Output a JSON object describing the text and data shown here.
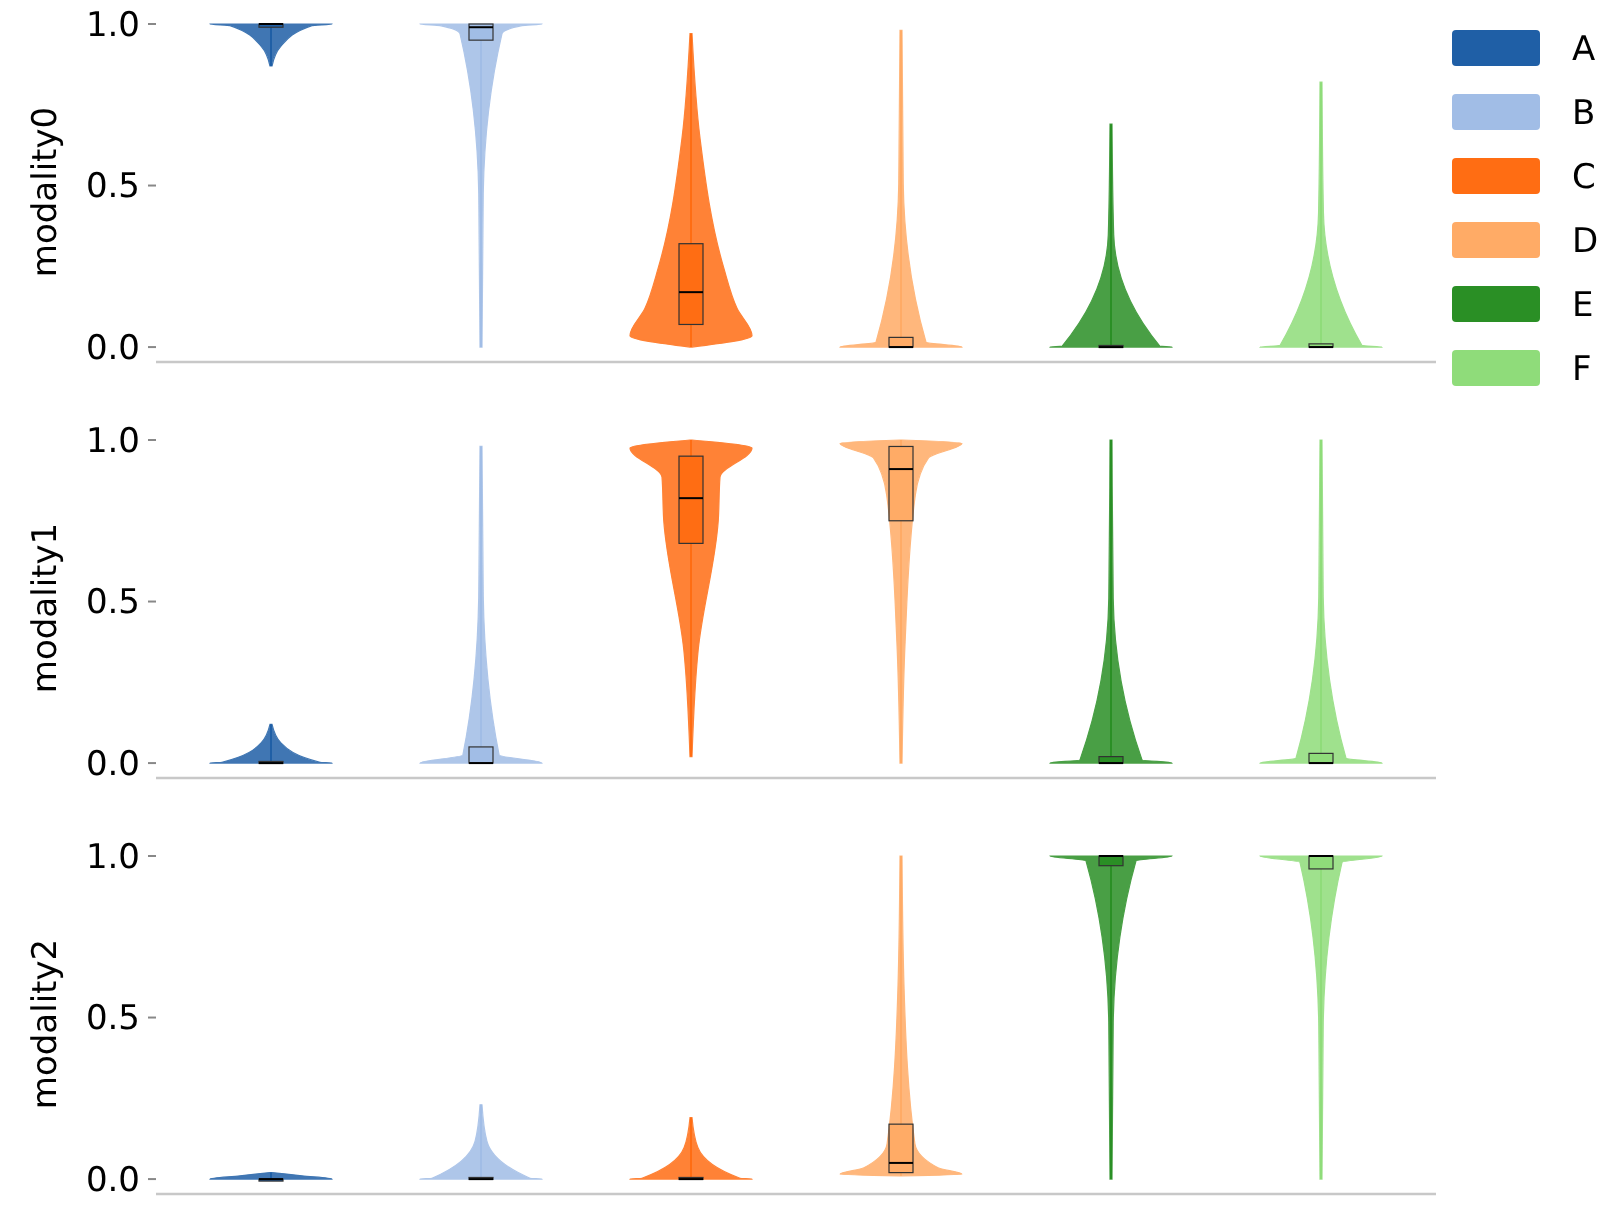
{
  "chart_data": [
    {
      "type": "box",
      "ylabel": "modality0",
      "categories": [
        null,
        null,
        null,
        null,
        null,
        null
      ],
      "ylim": [
        -0.04,
        1.0
      ],
      "yticks": [
        {
          "value": 0,
          "label": "0.0"
        },
        {
          "value": 0.5,
          "label": "0.5"
        },
        {
          "value": 1,
          "label": "1.0"
        }
      ],
      "legend": "right",
      "series": [
        {
          "name": "A",
          "color": "#1f5fa6",
          "boxes": [
            {
              "low": 0.87,
              "q1": 0.99,
              "median": 1.0,
              "q3": 1.0,
              "high": 1.0
            },
            null,
            null,
            null,
            null,
            null
          ]
        },
        {
          "name": "B",
          "color": "#a1bde6",
          "boxes": [
            null,
            {
              "low": 0.0,
              "q1": 0.95,
              "median": 0.99,
              "q3": 1.0,
              "high": 1.0
            },
            null,
            null,
            null,
            null
          ]
        },
        {
          "name": "C",
          "color": "#ff6d13",
          "boxes": [
            null,
            null,
            {
              "low": 0.0,
              "q1": 0.07,
              "median": 0.17,
              "q3": 0.32,
              "high": 0.97
            },
            null,
            null,
            null
          ]
        },
        {
          "name": "D",
          "color": "#ffab66",
          "boxes": [
            null,
            null,
            null,
            {
              "low": 0.0,
              "q1": 0.0,
              "median": 0.0,
              "q3": 0.03,
              "high": 0.98
            },
            null,
            null
          ]
        },
        {
          "name": "E",
          "color": "#2a8f25",
          "boxes": [
            null,
            null,
            null,
            null,
            {
              "low": 0.0,
              "q1": 0.0,
              "median": 0.0,
              "q3": 0.005,
              "high": 0.69
            },
            null
          ]
        },
        {
          "name": "F",
          "color": "#8fdc7a",
          "boxes": [
            null,
            null,
            null,
            null,
            null,
            {
              "low": 0.0,
              "q1": 0.0,
              "median": 0.0,
              "q3": 0.01,
              "high": 0.82
            }
          ]
        }
      ]
    },
    {
      "type": "box",
      "ylabel": "modality1",
      "categories": [
        null,
        null,
        null,
        null,
        null,
        null
      ],
      "ylim": [
        -0.04,
        1.0
      ],
      "yticks": [
        {
          "value": 0,
          "label": "0.0"
        },
        {
          "value": 0.5,
          "label": "0.5"
        },
        {
          "value": 1,
          "label": "1.0"
        }
      ],
      "series": [
        {
          "color": "#1f5fa6",
          "boxes": [
            {
              "low": 0.0,
              "q1": 0.0,
              "median": 0.0,
              "q3": 0.005,
              "high": 0.12
            },
            null,
            null,
            null,
            null,
            null
          ]
        },
        {
          "color": "#a1bde6",
          "boxes": [
            null,
            {
              "low": 0.0,
              "q1": 0.0,
              "median": 0.0,
              "q3": 0.05,
              "high": 0.98
            },
            null,
            null,
            null,
            null
          ]
        },
        {
          "color": "#ff6d13",
          "boxes": [
            null,
            null,
            {
              "low": 0.02,
              "q1": 0.68,
              "median": 0.82,
              "q3": 0.95,
              "high": 1.0
            },
            null,
            null,
            null
          ]
        },
        {
          "color": "#ffab66",
          "boxes": [
            null,
            null,
            null,
            {
              "low": 0.0,
              "q1": 0.75,
              "median": 0.91,
              "q3": 0.98,
              "high": 1.0
            },
            null,
            null
          ]
        },
        {
          "color": "#2a8f25",
          "boxes": [
            null,
            null,
            null,
            null,
            {
              "low": 0.0,
              "q1": 0.0,
              "median": 0.0,
              "q3": 0.02,
              "high": 1.0
            },
            null
          ]
        },
        {
          "color": "#8fdc7a",
          "boxes": [
            null,
            null,
            null,
            null,
            null,
            {
              "low": 0.0,
              "q1": 0.0,
              "median": 0.0,
              "q3": 0.03,
              "high": 1.0
            }
          ]
        }
      ]
    },
    {
      "type": "box",
      "ylabel": "modality2",
      "categories": [
        null,
        null,
        null,
        null,
        null,
        null
      ],
      "ylim": [
        -0.04,
        1.0
      ],
      "yticks": [
        {
          "value": 0,
          "label": "0.0"
        },
        {
          "value": 0.5,
          "label": "0.5"
        },
        {
          "value": 1,
          "label": "1.0"
        }
      ],
      "series": [
        {
          "color": "#1f5fa6",
          "boxes": [
            {
              "low": 0.0,
              "q1": 0.0,
              "median": 0.0,
              "q3": 0.0,
              "high": 0.02
            },
            null,
            null,
            null,
            null,
            null
          ]
        },
        {
          "color": "#a1bde6",
          "boxes": [
            null,
            {
              "low": 0.0,
              "q1": 0.0,
              "median": 0.0,
              "q3": 0.005,
              "high": 0.23
            },
            null,
            null,
            null,
            null
          ]
        },
        {
          "color": "#ff6d13",
          "boxes": [
            null,
            null,
            {
              "low": 0.0,
              "q1": 0.0,
              "median": 0.0,
              "q3": 0.005,
              "high": 0.19
            },
            null,
            null,
            null
          ]
        },
        {
          "color": "#ffab66",
          "boxes": [
            null,
            null,
            null,
            {
              "low": 0.01,
              "q1": 0.02,
              "median": 0.05,
              "q3": 0.17,
              "high": 1.0
            },
            null,
            null
          ]
        },
        {
          "color": "#2a8f25",
          "boxes": [
            null,
            null,
            null,
            null,
            {
              "low": 0.0,
              "q1": 0.97,
              "median": 1.0,
              "q3": 1.0,
              "high": 1.0
            },
            null
          ]
        },
        {
          "color": "#8fdc7a",
          "boxes": [
            null,
            null,
            null,
            null,
            null,
            {
              "low": 0.0,
              "q1": 0.96,
              "median": 1.0,
              "q3": 1.0,
              "high": 1.0
            }
          ]
        }
      ]
    }
  ]
}
